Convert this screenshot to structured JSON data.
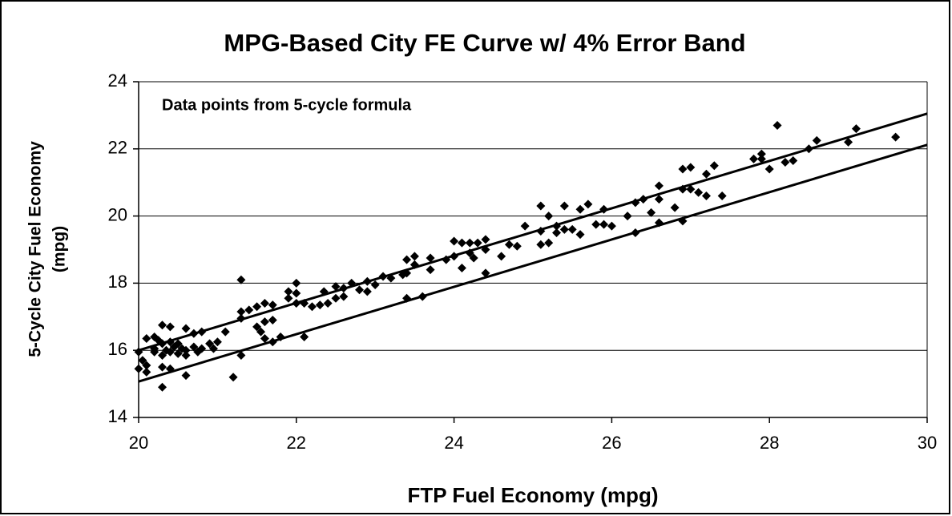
{
  "chart_data": {
    "type": "scatter",
    "title": "MPG-Based City FE Curve w/ 4% Error Band",
    "annotation": "Data points from 5-cycle formula",
    "xlabel": "FTP Fuel Economy (mpg)",
    "ylabel": [
      "5-Cycle City Fuel Economy",
      "(mpg)"
    ],
    "xlim": [
      20,
      30
    ],
    "xticks": [
      20,
      22,
      24,
      26,
      28,
      30
    ],
    "ylim": [
      14,
      24
    ],
    "yticks": [
      14,
      16,
      18,
      20,
      22,
      24
    ],
    "grid": true,
    "series": [
      {
        "type": "scatter",
        "color": "#000000",
        "x": [
          20.0,
          20.0,
          20.05,
          20.1,
          20.1,
          20.1,
          20.2,
          20.2,
          20.2,
          20.25,
          20.3,
          20.3,
          20.3,
          20.3,
          20.3,
          20.35,
          20.4,
          20.4,
          20.4,
          20.4,
          20.45,
          20.5,
          20.5,
          20.55,
          20.6,
          20.6,
          20.6,
          20.6,
          20.7,
          20.7,
          20.75,
          20.8,
          20.8,
          20.9,
          20.95,
          21.0,
          21.1,
          21.2,
          21.3,
          21.3,
          21.3,
          21.3,
          21.4,
          21.5,
          21.5,
          21.55,
          21.6,
          21.6,
          21.6,
          21.7,
          21.7,
          21.7,
          21.8,
          21.9,
          21.9,
          22.0,
          22.0,
          22.0,
          22.1,
          22.1,
          22.2,
          22.3,
          22.35,
          22.4,
          22.5,
          22.5,
          22.6,
          22.6,
          22.7,
          22.8,
          22.9,
          22.9,
          23.0,
          23.1,
          23.2,
          23.35,
          23.4,
          23.4,
          23.4,
          23.5,
          23.5,
          23.6,
          23.7,
          23.7,
          23.9,
          24.0,
          24.0,
          24.1,
          24.1,
          24.2,
          24.2,
          24.25,
          24.3,
          24.4,
          24.4,
          24.4,
          24.6,
          24.7,
          24.8,
          24.9,
          25.1,
          25.1,
          25.1,
          25.2,
          25.2,
          25.3,
          25.3,
          25.4,
          25.4,
          25.5,
          25.6,
          25.6,
          25.7,
          25.8,
          25.9,
          25.9,
          26.0,
          26.2,
          26.3,
          26.3,
          26.4,
          26.5,
          26.6,
          26.6,
          26.6,
          26.8,
          26.9,
          26.9,
          26.9,
          27.0,
          27.0,
          27.1,
          27.2,
          27.2,
          27.3,
          27.4,
          27.8,
          27.9,
          27.9,
          28.0,
          28.1,
          28.2,
          28.3,
          28.5,
          28.6,
          29.0,
          29.1,
          29.6
        ],
        "values": [
          15.95,
          15.45,
          15.7,
          15.35,
          15.55,
          16.35,
          16.4,
          16.05,
          15.95,
          16.3,
          16.75,
          16.2,
          15.85,
          15.5,
          14.9,
          16.0,
          16.7,
          16.25,
          15.95,
          15.45,
          16.1,
          16.2,
          15.9,
          16.05,
          16.65,
          16.0,
          15.85,
          15.25,
          16.5,
          16.1,
          15.95,
          16.55,
          16.05,
          16.2,
          16.05,
          16.25,
          16.55,
          15.2,
          18.1,
          17.15,
          16.95,
          15.85,
          17.2,
          17.3,
          16.7,
          16.55,
          17.4,
          16.85,
          16.35,
          17.35,
          16.9,
          16.25,
          16.4,
          17.55,
          17.75,
          18.0,
          17.7,
          17.4,
          16.4,
          17.4,
          17.3,
          17.35,
          17.75,
          17.4,
          17.9,
          17.55,
          17.85,
          17.6,
          18.0,
          17.8,
          18.05,
          17.75,
          17.95,
          18.2,
          18.15,
          18.25,
          18.7,
          18.3,
          17.55,
          18.8,
          18.55,
          17.6,
          18.75,
          18.4,
          18.7,
          19.25,
          18.8,
          19.2,
          18.45,
          19.2,
          18.9,
          18.75,
          19.2,
          19.3,
          18.3,
          19.0,
          18.8,
          19.15,
          19.1,
          19.7,
          20.3,
          19.55,
          19.15,
          20.0,
          19.2,
          19.7,
          19.5,
          19.6,
          20.3,
          19.6,
          20.2,
          19.45,
          20.35,
          19.75,
          20.2,
          19.75,
          19.7,
          20.0,
          20.4,
          19.5,
          20.5,
          20.1,
          20.9,
          20.5,
          19.8,
          20.25,
          21.4,
          20.8,
          19.85,
          21.45,
          20.8,
          20.7,
          21.25,
          20.6,
          21.5,
          20.6,
          21.7,
          21.85,
          21.7,
          21.4,
          22.7,
          21.6,
          21.65,
          22.0,
          22.25,
          22.2,
          22.6,
          22.35
        ]
      },
      {
        "type": "line",
        "color": "#000000",
        "x": [
          20,
          30
        ],
        "values": [
          16.0,
          23.05
        ]
      },
      {
        "type": "line",
        "color": "#000000",
        "x": [
          20,
          30
        ],
        "values": [
          15.07,
          22.12
        ]
      }
    ]
  }
}
